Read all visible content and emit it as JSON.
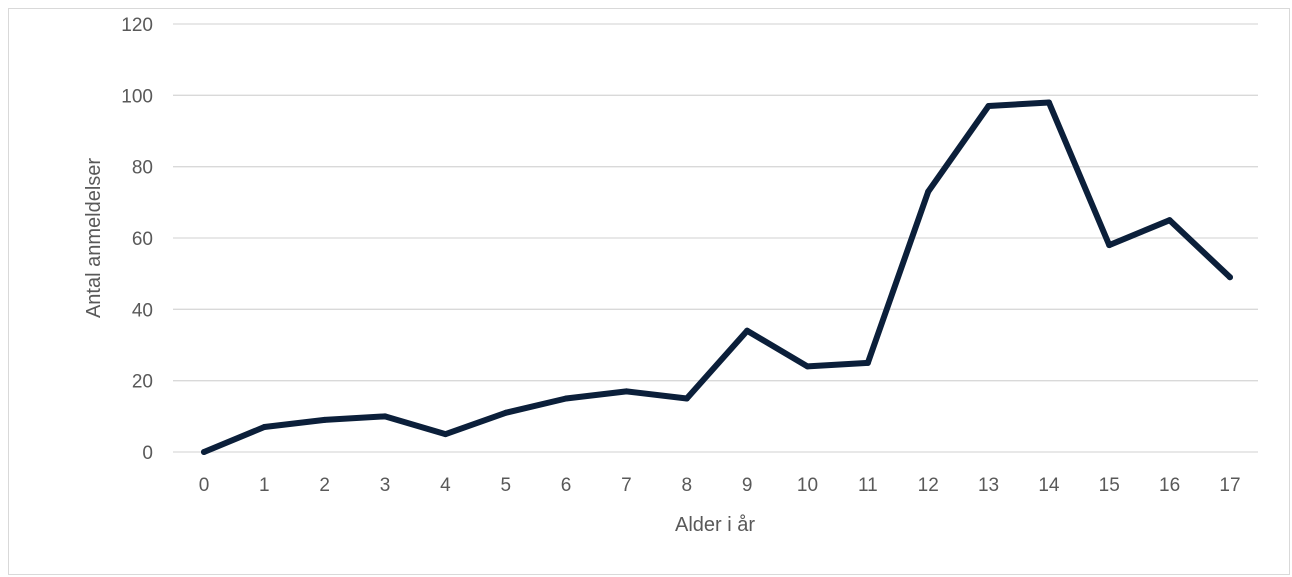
{
  "chart_data": {
    "type": "line",
    "xlabel": "Alder i år",
    "ylabel": "Antal anmeldelser",
    "categories": [
      "0",
      "1",
      "2",
      "3",
      "4",
      "5",
      "6",
      "7",
      "8",
      "9",
      "10",
      "11",
      "12",
      "13",
      "14",
      "15",
      "16",
      "17"
    ],
    "yticks": [
      "0",
      "20",
      "40",
      "60",
      "80",
      "100",
      "120"
    ],
    "ylim": [
      0,
      120
    ],
    "grid": "horizontal",
    "series": [
      {
        "values": [
          0,
          7,
          9,
          10,
          5,
          11,
          15,
          17,
          15,
          34,
          24,
          25,
          73,
          97,
          98,
          58,
          65,
          49
        ],
        "color": "#0b1f3a"
      }
    ],
    "gridline_color": "#d9d9d9"
  }
}
